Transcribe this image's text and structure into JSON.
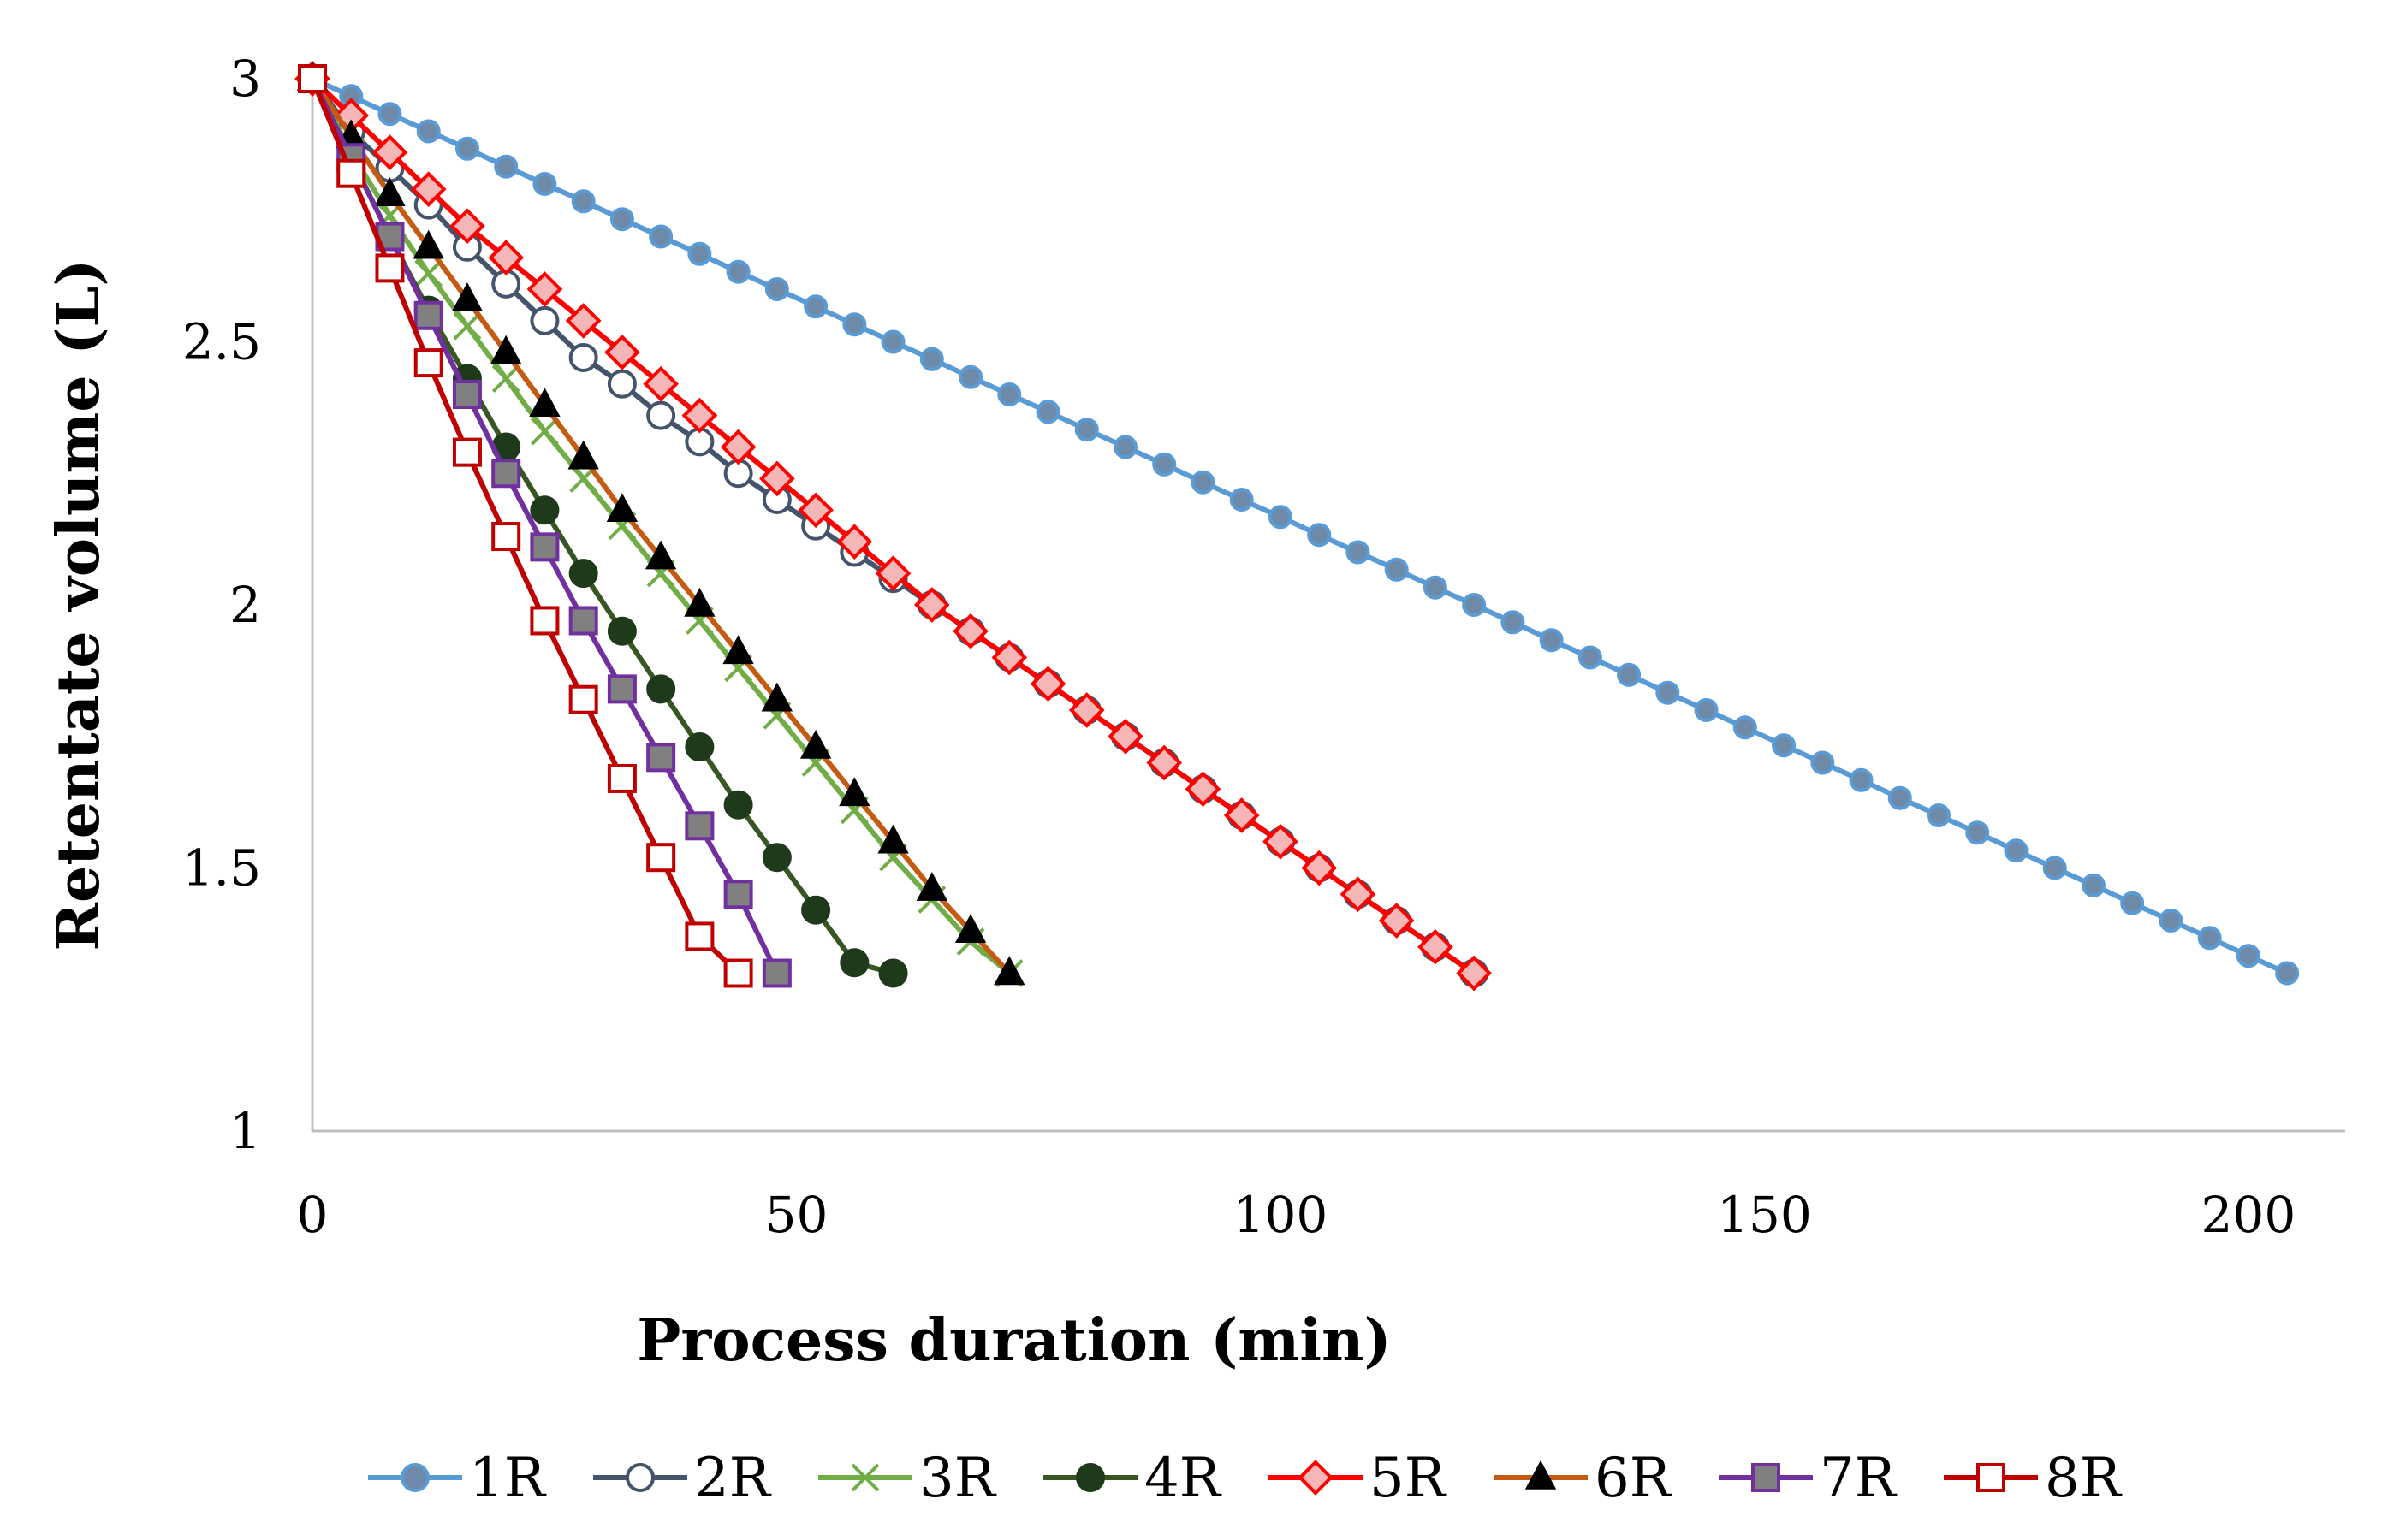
{
  "chart_data": {
    "type": "line",
    "title": "",
    "xlabel": "Process duration (min)",
    "ylabel": "Retentate volume (L)",
    "xlim": [
      0,
      210
    ],
    "ylim": [
      1,
      3
    ],
    "xticks": [
      0,
      50,
      100,
      150,
      200
    ],
    "yticks": [
      1,
      1.5,
      2,
      2.5,
      3
    ],
    "xtick_labels": [
      "0",
      "50",
      "100",
      "150",
      "200"
    ],
    "ytick_labels": [
      "1",
      "1.5",
      "2",
      "2.5",
      "3"
    ],
    "grid": false,
    "legend_position": "bottom",
    "series": [
      {
        "name": "1R",
        "color": "#5B9BD5",
        "marker": "circle",
        "marker_fill": "#6D8BA8",
        "marker_stroke": "#5B9BD5",
        "x": [
          0,
          4,
          8,
          12,
          16,
          20,
          24,
          28,
          32,
          36,
          40,
          44,
          48,
          52,
          56,
          60,
          64,
          68,
          72,
          76,
          80,
          84,
          88,
          92,
          96,
          100,
          104,
          108,
          112,
          116,
          120,
          124,
          128,
          132,
          136,
          140,
          144,
          148,
          152,
          156,
          160,
          164,
          168,
          172,
          176,
          180,
          184,
          188,
          192,
          196,
          200,
          204
        ],
        "y": [
          3,
          2.967,
          2.933,
          2.9,
          2.867,
          2.833,
          2.8,
          2.767,
          2.733,
          2.7,
          2.667,
          2.633,
          2.6,
          2.567,
          2.533,
          2.5,
          2.467,
          2.433,
          2.4,
          2.367,
          2.333,
          2.3,
          2.267,
          2.233,
          2.2,
          2.167,
          2.133,
          2.1,
          2.067,
          2.033,
          2,
          1.967,
          1.933,
          1.9,
          1.867,
          1.833,
          1.8,
          1.767,
          1.733,
          1.7,
          1.667,
          1.633,
          1.6,
          1.567,
          1.533,
          1.5,
          1.467,
          1.433,
          1.4,
          1.367,
          1.333,
          1.3
        ]
      },
      {
        "name": "2R",
        "color": "#44546A",
        "marker": "circle",
        "marker_fill": "#FFFFFF",
        "marker_stroke": "#44546A",
        "x": [
          0,
          4,
          8,
          12,
          16,
          20,
          24,
          28,
          32,
          36,
          40,
          44,
          48,
          52,
          56,
          60,
          64,
          68,
          72,
          76,
          80,
          84,
          88,
          92,
          96,
          100,
          104,
          108,
          112,
          116,
          120
        ],
        "y": [
          3,
          2.9,
          2.83,
          2.76,
          2.68,
          2.61,
          2.54,
          2.47,
          2.42,
          2.36,
          2.31,
          2.25,
          2.2,
          2.15,
          2.1,
          2.05,
          2,
          1.95,
          1.9,
          1.85,
          1.8,
          1.75,
          1.7,
          1.65,
          1.6,
          1.55,
          1.5,
          1.45,
          1.4,
          1.35,
          1.3
        ]
      },
      {
        "name": "3R",
        "color": "#70AD47",
        "marker": "x",
        "marker_fill": "none",
        "marker_stroke": "#70AD47",
        "x": [
          0,
          4,
          8,
          12,
          16,
          20,
          24,
          28,
          32,
          36,
          40,
          44,
          48,
          52,
          56,
          60,
          64,
          68,
          72
        ],
        "y": [
          3,
          2.86,
          2.74,
          2.63,
          2.53,
          2.43,
          2.33,
          2.24,
          2.15,
          2.06,
          1.97,
          1.88,
          1.79,
          1.7,
          1.61,
          1.52,
          1.44,
          1.36,
          1.3
        ]
      },
      {
        "name": "4R",
        "color": "#375623",
        "marker": "circle",
        "marker_fill": "#1E3A1A",
        "marker_stroke": "#1E3A1A",
        "x": [
          0,
          4,
          8,
          12,
          16,
          20,
          24,
          28,
          32,
          36,
          40,
          44,
          48,
          52,
          56,
          60
        ],
        "y": [
          3,
          2.85,
          2.7,
          2.56,
          2.43,
          2.3,
          2.18,
          2.06,
          1.95,
          1.84,
          1.73,
          1.62,
          1.52,
          1.42,
          1.32,
          1.3
        ]
      },
      {
        "name": "5R",
        "color": "#FF0000",
        "marker": "diamond",
        "marker_fill": "#F4B6B6",
        "marker_stroke": "#FF0000",
        "x": [
          0,
          4,
          8,
          12,
          16,
          20,
          24,
          28,
          32,
          36,
          40,
          44,
          48,
          52,
          56,
          60,
          64,
          68,
          72,
          76,
          80,
          84,
          88,
          92,
          96,
          100,
          104,
          108,
          112,
          116,
          120
        ],
        "y": [
          3,
          2.93,
          2.86,
          2.79,
          2.72,
          2.66,
          2.6,
          2.54,
          2.48,
          2.42,
          2.36,
          2.3,
          2.24,
          2.18,
          2.12,
          2.06,
          2,
          1.95,
          1.9,
          1.85,
          1.8,
          1.75,
          1.7,
          1.65,
          1.6,
          1.55,
          1.5,
          1.45,
          1.4,
          1.35,
          1.3
        ]
      },
      {
        "name": "6R",
        "color": "#C55A11",
        "marker": "triangle",
        "marker_fill": "#000000",
        "marker_stroke": "#000000",
        "x": [
          0,
          4,
          8,
          12,
          16,
          20,
          24,
          28,
          32,
          36,
          40,
          44,
          48,
          52,
          56,
          60,
          64,
          68,
          72
        ],
        "y": [
          3,
          2.89,
          2.78,
          2.68,
          2.58,
          2.48,
          2.38,
          2.28,
          2.18,
          2.09,
          2,
          1.91,
          1.82,
          1.73,
          1.64,
          1.55,
          1.46,
          1.38,
          1.3
        ]
      },
      {
        "name": "7R",
        "color": "#7030A0",
        "marker": "square",
        "marker_fill": "#808080",
        "marker_stroke": "#7030A0",
        "x": [
          0,
          4,
          8,
          12,
          16,
          20,
          24,
          28,
          32,
          36,
          40,
          44,
          48
        ],
        "y": [
          3,
          2.85,
          2.7,
          2.55,
          2.4,
          2.25,
          2.11,
          1.97,
          1.84,
          1.71,
          1.58,
          1.45,
          1.3
        ]
      },
      {
        "name": "8R",
        "color": "#C00000",
        "marker": "square",
        "marker_fill": "#FFFFFF",
        "marker_stroke": "#C00000",
        "x": [
          0,
          4,
          8,
          12,
          16,
          20,
          24,
          28,
          32,
          36,
          40,
          44
        ],
        "y": [
          3,
          2.82,
          2.64,
          2.46,
          2.29,
          2.13,
          1.97,
          1.82,
          1.67,
          1.52,
          1.37,
          1.3
        ]
      }
    ]
  }
}
